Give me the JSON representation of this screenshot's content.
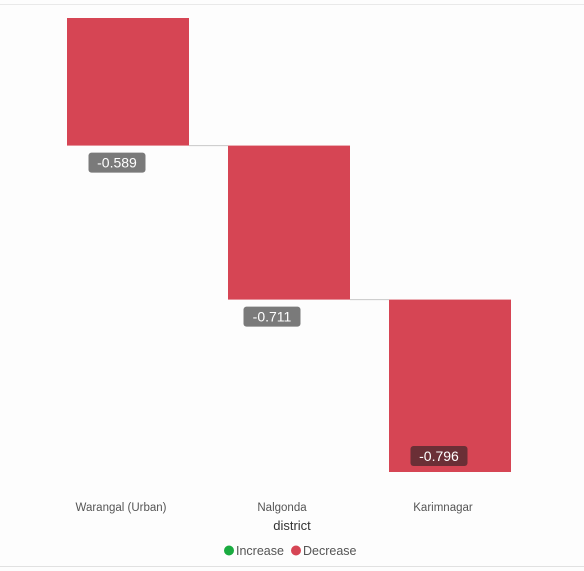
{
  "chart_data": {
    "type": "waterfall",
    "categories": [
      "Warangal (Urban)",
      "Nalgonda",
      "Karimnagar"
    ],
    "values": [
      -0.589,
      -0.711,
      -0.796
    ],
    "labels": [
      "-0.589",
      "-0.711",
      "-0.796"
    ],
    "xlabel": "district",
    "ylabel": "",
    "legend": {
      "placement": "bottom-center",
      "items": [
        {
          "name": "Increase",
          "color": "#1aab40"
        },
        {
          "name": "Decrease",
          "color": "#d64554"
        }
      ]
    },
    "grid": false,
    "colors": {
      "decrease": "#d64554",
      "increase": "#1aab40",
      "label_bg": "#7a7a7a",
      "label_bg_inside": "#6b2f36",
      "connector": "#c8c8c8"
    }
  }
}
